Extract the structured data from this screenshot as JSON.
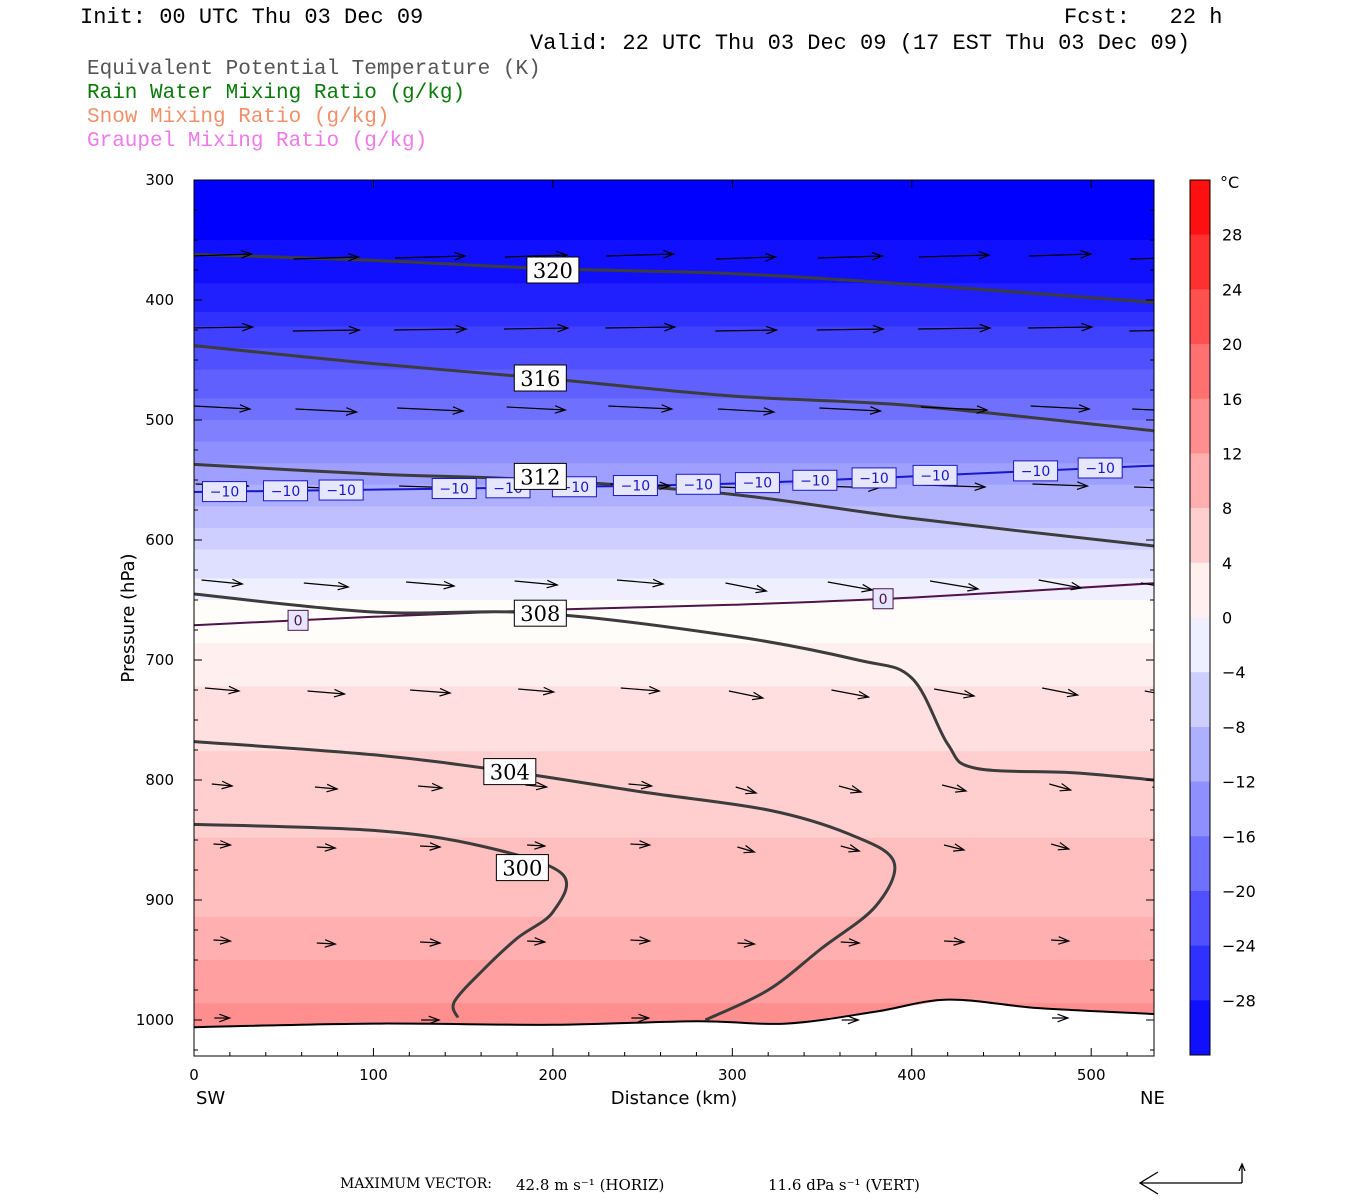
{
  "header": {
    "init": "Init: 00 UTC Thu 03 Dec 09",
    "fcst": "Fcst:   22 h",
    "valid": "Valid: 22 UTC Thu 03 Dec 09 (17 EST Thu 03 Dec 09)"
  },
  "legend": [
    {
      "label": "Equivalent Potential Temperature (K)",
      "color": "#555555"
    },
    {
      "label": "Rain Water Mixing Ratio (g/kg)",
      "color": "#0a7a0a"
    },
    {
      "label": "Snow Mixing Ratio (g/kg)",
      "color": "#f0906a"
    },
    {
      "label": "Graupel Mixing Ratio (g/kg)",
      "color": "#f07ae8"
    }
  ],
  "chart_data": {
    "type": "cross-section",
    "xlabel": "Distance (km)",
    "ylabel": "Pressure (hPa)",
    "x_left_label": "SW",
    "x_right_label": "NE",
    "xlim": [
      0,
      535
    ],
    "ylim": [
      1030,
      300
    ],
    "y_scale": "linear",
    "x_ticks": [
      0,
      100,
      200,
      300,
      400,
      500
    ],
    "y_ticks": [
      300,
      400,
      500,
      600,
      700,
      800,
      900,
      1000
    ],
    "colorbar": {
      "unit": "°C",
      "min": -32,
      "max": 32,
      "step": 4,
      "tick_labels": [
        28,
        24,
        20,
        16,
        12,
        8,
        4,
        0,
        -4,
        -8,
        -12,
        -16,
        -20,
        -24,
        -28
      ]
    },
    "temperature_field": [
      {
        "p": 300,
        "t": -34
      },
      {
        "p": 400,
        "t": -28
      },
      {
        "p": 450,
        "t": -22
      },
      {
        "p": 500,
        "t": -17
      },
      {
        "p": 560,
        "t": -10
      },
      {
        "p": 600,
        "t": -6
      },
      {
        "p": 650,
        "t": -1
      },
      {
        "p": 700,
        "t": 2
      },
      {
        "p": 800,
        "t": 6
      },
      {
        "p": 900,
        "t": 8
      },
      {
        "p": 1000,
        "t": 14
      }
    ],
    "theta_e_contours": [
      {
        "label": "320",
        "label_at": [
          200,
          375
        ],
        "points": [
          [
            0,
            362
          ],
          [
            100,
            367
          ],
          [
            200,
            374
          ],
          [
            300,
            378
          ],
          [
            400,
            387
          ],
          [
            535,
            402
          ]
        ]
      },
      {
        "label": "316",
        "label_at": [
          193,
          465
        ],
        "points": [
          [
            0,
            438
          ],
          [
            100,
            453
          ],
          [
            193,
            465
          ],
          [
            300,
            480
          ],
          [
            400,
            488
          ],
          [
            535,
            509
          ]
        ]
      },
      {
        "label": "312",
        "label_at": [
          193,
          547
        ],
        "points": [
          [
            0,
            537
          ],
          [
            100,
            545
          ],
          [
            193,
            550
          ],
          [
            300,
            562
          ],
          [
            400,
            582
          ],
          [
            535,
            605
          ]
        ]
      },
      {
        "label": "308",
        "label_at": [
          193,
          661
        ],
        "points": [
          [
            0,
            645
          ],
          [
            100,
            660
          ],
          [
            193,
            661
          ],
          [
            300,
            680
          ],
          [
            370,
            700
          ],
          [
            400,
            715
          ],
          [
            420,
            770
          ],
          [
            435,
            790
          ],
          [
            490,
            794
          ],
          [
            535,
            800
          ]
        ]
      },
      {
        "label": "304",
        "label_at": [
          176,
          793
        ],
        "points": [
          [
            0,
            768
          ],
          [
            100,
            779
          ],
          [
            176,
            793
          ],
          [
            250,
            810
          ],
          [
            320,
            825
          ],
          [
            365,
            845
          ],
          [
            390,
            868
          ],
          [
            380,
            905
          ],
          [
            350,
            940
          ],
          [
            320,
            975
          ],
          [
            285,
            1000
          ]
        ]
      },
      {
        "label": "300",
        "label_at": [
          183,
          873
        ],
        "points": [
          [
            0,
            837
          ],
          [
            100,
            842
          ],
          [
            160,
            855
          ],
          [
            205,
            878
          ],
          [
            200,
            910
          ],
          [
            180,
            932
          ],
          [
            160,
            960
          ],
          [
            145,
            985
          ],
          [
            147,
            998
          ]
        ]
      }
    ],
    "isotherms": [
      {
        "value": 0,
        "color": "#50124a",
        "label": "0",
        "labels_x": [
          58,
          384
        ],
        "points": [
          [
            0,
            671
          ],
          [
            100,
            664
          ],
          [
            200,
            658
          ],
          [
            300,
            654
          ],
          [
            400,
            648
          ],
          [
            535,
            636
          ]
        ]
      },
      {
        "value": -10,
        "color": "#1818c8",
        "label": "−10",
        "labels_x": [
          17,
          51,
          82,
          145,
          175,
          212,
          246,
          281,
          314,
          346,
          379,
          413,
          469,
          505
        ],
        "points": [
          [
            0,
            560
          ],
          [
            100,
            558
          ],
          [
            200,
            556
          ],
          [
            300,
            553
          ],
          [
            400,
            547
          ],
          [
            535,
            538
          ]
        ]
      }
    ],
    "terrain": [
      [
        0,
        1006
      ],
      [
        100,
        1003
      ],
      [
        200,
        1004
      ],
      [
        280,
        1001
      ],
      [
        330,
        1003
      ],
      [
        380,
        993
      ],
      [
        420,
        983
      ],
      [
        470,
        990
      ],
      [
        535,
        995
      ]
    ],
    "vector_scale": {
      "horiz": "42.8 m s⁻¹ (HORIZ)",
      "vert": "11.6 dPa s⁻¹ (VERT)"
    }
  },
  "footer": {
    "max_label": "MAXIMUM VECTOR:",
    "horiz_num": "42.8",
    "vert_num": "11.6",
    "horiz_rest": "m s⁻¹ (HORIZ)",
    "vert_rest": "dPa s⁻¹ (VERT)"
  }
}
